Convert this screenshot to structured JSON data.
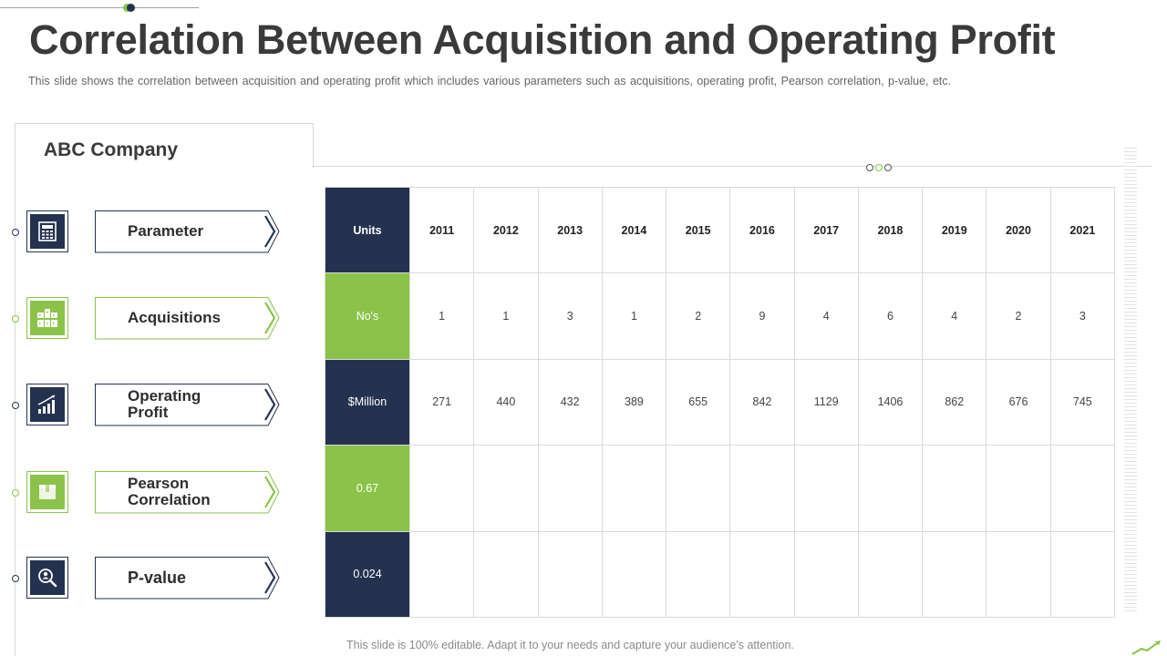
{
  "slide": {
    "title": "Correlation Between Acquisition and Operating Profit",
    "subtitle": "This slide shows the correlation between acquisition and operating profit which includes various  parameters such as acquisitions, operating profit, Pearson correlation, p-value,  etc.",
    "company": "ABC Company",
    "footer": "This slide is 100% editable. Adapt it to your needs and capture your audience's attention."
  },
  "parameters": [
    {
      "label": "Parameter",
      "icon": "calculator-icon",
      "accent": "navy"
    },
    {
      "label": "Acquisitions",
      "icon": "buildings-icon",
      "accent": "green"
    },
    {
      "label": "Operating Profit",
      "icon": "bar-chart-icon",
      "accent": "navy"
    },
    {
      "label": "Pearson Correlation",
      "icon": "box-icon",
      "accent": "green"
    },
    {
      "label": "P-value",
      "icon": "magnifier-person-icon",
      "accent": "navy"
    }
  ],
  "table": {
    "units_header": "Units",
    "years": [
      "2011",
      "2012",
      "2013",
      "2014",
      "2015",
      "2016",
      "2017",
      "2018",
      "2019",
      "2020",
      "2021"
    ],
    "rows": [
      {
        "unit": "No's",
        "values": [
          "1",
          "1",
          "3",
          "1",
          "2",
          "9",
          "4",
          "6",
          "4",
          "2",
          "3"
        ]
      },
      {
        "unit": "$Million",
        "values": [
          "271",
          "440",
          "432",
          "389",
          "655",
          "842",
          "1129",
          "1406",
          "862",
          "676",
          "745"
        ]
      },
      {
        "unit": "0.67",
        "values": [
          "",
          "",
          "",
          "",
          "",
          "",
          "",
          "",
          "",
          "",
          ""
        ]
      },
      {
        "unit": "0.024",
        "values": [
          "",
          "",
          "",
          "",
          "",
          "",
          "",
          "",
          "",
          "",
          ""
        ]
      }
    ]
  },
  "colors": {
    "navy": "#25324f",
    "green": "#8bc34a"
  }
}
